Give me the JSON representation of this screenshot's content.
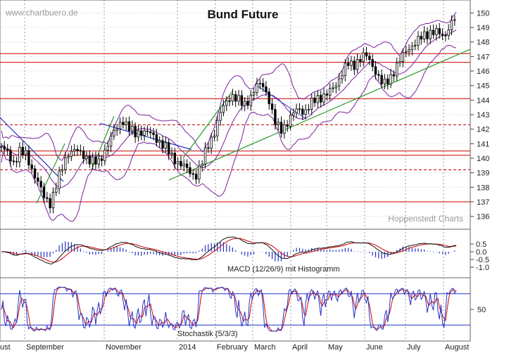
{
  "watermark": "www.chartbuero.de",
  "credit": "Hoppenstedt Charts",
  "chart_data": [
    {
      "type": "line",
      "title": "Bund Future",
      "y_ticks": [
        136,
        137,
        138,
        139,
        140,
        141,
        142,
        143,
        144,
        145,
        146,
        147,
        148,
        149,
        150
      ],
      "ylim": [
        135.5,
        150.6
      ],
      "x_labels": [
        "ust",
        "September",
        "November",
        "2014",
        "February",
        "March",
        "April",
        "May",
        "June",
        "July",
        "August"
      ],
      "horizontal_levels_solid": [
        147.2,
        146.6,
        144.1,
        140.5,
        140.2,
        137.0
      ],
      "horizontal_levels_dashed": [
        142.3,
        139.2
      ],
      "close_series": [
        140.8,
        140.3,
        139.7,
        140.5,
        140.2,
        139.3,
        138.4,
        137.3,
        136.9,
        138.1,
        139.3,
        140.4,
        140.6,
        140.3,
        140.1,
        139.8,
        139.6,
        140.5,
        141.4,
        142.0,
        142.7,
        142.1,
        141.6,
        141.9,
        141.8,
        141.5,
        141.2,
        140.8,
        140.1,
        139.8,
        139.5,
        139.0,
        138.8,
        139.6,
        140.8,
        141.7,
        143.0,
        143.8,
        144.4,
        144.0,
        143.6,
        144.2,
        144.9,
        145.1,
        144.3,
        142.5,
        141.9,
        142.4,
        143.0,
        143.4,
        143.2,
        143.7,
        144.1,
        144.3,
        144.5,
        144.9,
        145.8,
        146.5,
        146.3,
        146.9,
        147.1,
        146.5,
        145.8,
        145.0,
        145.4,
        146.3,
        146.9,
        147.5,
        147.9,
        148.2,
        148.5,
        148.8,
        148.6,
        148.3,
        149.3,
        149.7
      ],
      "trendlines": [
        {
          "color": "#2a9a2a",
          "points": [
            [
              137,
              "Sep"
            ],
            [
              140.9,
              "Sep"
            ]
          ]
        },
        {
          "color": "#2a9a2a",
          "points": [
            [
              139.0,
              "Oct"
            ],
            [
              142.6,
              "Oct"
            ]
          ]
        },
        {
          "color": "#2a9a2a",
          "points": [
            [
              138.5,
              "Dec"
            ],
            [
              147.5,
              "Aug"
            ]
          ]
        }
      ]
    },
    {
      "type": "line",
      "title": "",
      "caption": "MACD (12/26/9) mit Histogramm",
      "y_ticks": [
        0.5,
        0.0,
        -0.5,
        -1.0
      ],
      "y_tick_labels": [
        "0.5",
        "0.0",
        "-0.5",
        "-1.0"
      ],
      "series_colors": {
        "macd": "#111111",
        "signal": "#cc0000",
        "histogram": "#2233bb"
      }
    },
    {
      "type": "line",
      "title": "",
      "caption": "Stochastik (5/3/3)",
      "y_ticks": [
        50
      ],
      "y_tick_labels": [
        "50"
      ],
      "levels": [
        80,
        20
      ],
      "series_colors": {
        "k": "#2233cc",
        "d": "#cc0000"
      }
    }
  ]
}
